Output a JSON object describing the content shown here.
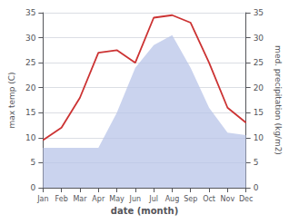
{
  "chart_data": {
    "type": "line",
    "categories": [
      "Jan",
      "Feb",
      "Mar",
      "Apr",
      "May",
      "Jun",
      "Jul",
      "Aug",
      "Sep",
      "Oct",
      "Nov",
      "Dec"
    ],
    "series": [
      {
        "type": "area",
        "color": "#b8c4e8",
        "axis": "y2",
        "values": [
          8.0,
          8.0,
          8.0,
          8.0,
          15.0,
          24.0,
          28.5,
          30.5,
          24.0,
          16.0,
          11.0,
          10.5
        ]
      },
      {
        "type": "line",
        "color": "#cc3333",
        "values": [
          9.5,
          12.0,
          18.0,
          27.0,
          27.5,
          25.0,
          34.0,
          34.5,
          33.0,
          25.0,
          16.0,
          13.0
        ]
      }
    ],
    "xlabel": "date (month)",
    "ylabel": "max temp (C)",
    "y2label": "med. precipitation (kg/m2)",
    "ylim": [
      0,
      35
    ],
    "yticks": [
      0,
      5,
      10,
      15,
      20,
      25,
      30,
      35
    ],
    "y2lim": [
      0,
      35
    ],
    "y2ticks": [
      0,
      5,
      10,
      15,
      20,
      25,
      30,
      35
    ],
    "grid": true
  }
}
